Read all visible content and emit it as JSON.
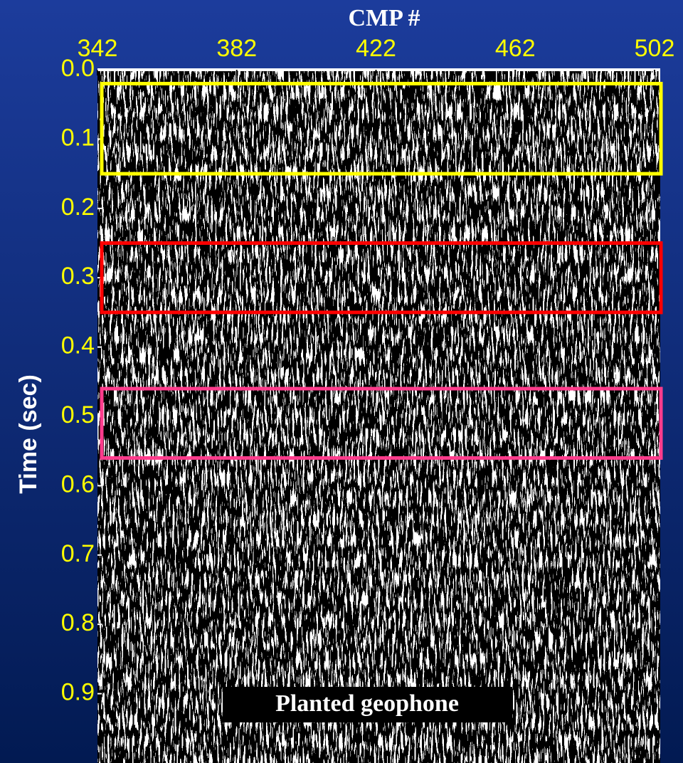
{
  "chart_data": {
    "type": "seismic",
    "x_label": "CMP #",
    "y_label": "Time (sec)",
    "xlim": [
      342,
      502
    ],
    "xticks": [
      342,
      382,
      422,
      462,
      502
    ],
    "ylim": [
      0,
      1
    ],
    "y_inverted": true,
    "yticks": [
      {
        "value": 0,
        "label": "0.0"
      },
      0.1,
      0.2,
      0.3,
      0.4,
      0.5,
      0.6,
      0.7,
      0.8,
      0.9
    ],
    "tick_color": "#ffff00",
    "highlights": [
      {
        "color": "#ffff00",
        "y": [
          0.02,
          0.15
        ]
      },
      {
        "color": "#ff0000",
        "y": [
          0.25,
          0.35
        ]
      },
      {
        "color": "#ff3c8c",
        "y": [
          0.46,
          0.56
        ]
      }
    ],
    "annotation": "Planted geophone"
  }
}
